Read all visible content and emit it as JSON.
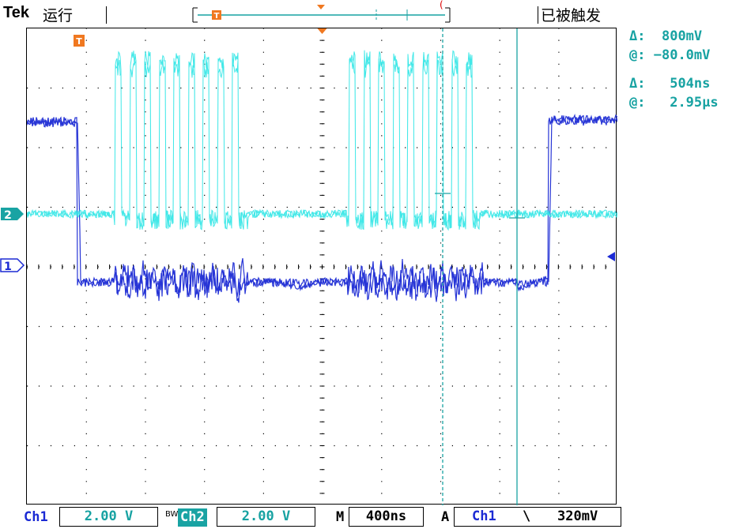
{
  "topbar": {
    "brand": "Tek",
    "run_state": "运行",
    "trigger_state": "已被触发",
    "trigger_position_marker": "T"
  },
  "markers": {
    "trigger_icon": "T",
    "ch1_marker": "1",
    "ch2_marker": "2"
  },
  "readouts": {
    "voltage_delta_label": "Δ:",
    "voltage_delta_value": "800mV",
    "voltage_at_label": "@:",
    "voltage_at_value": "−80.0mV",
    "time_delta_label": "Δ:",
    "time_delta_value": "504ns",
    "time_at_label": "@:",
    "time_at_value": "2.95μs"
  },
  "bottombar": {
    "ch1_label": "Ch1",
    "ch1_scale": "2.00 V",
    "bw_label": "BW",
    "ch2_label": "Ch2",
    "ch2_scale": "2.00 V",
    "timebase_label": "M",
    "timebase_value": "400ns",
    "trigger_label": "A",
    "trigger_source": "Ch1",
    "trigger_slope": "\\",
    "trigger_level": "320mV"
  },
  "colors": {
    "ch1": "#1b2ad4",
    "ch2": "#2ee6e6",
    "cursor": "#19a3a3",
    "trigger_marker": "#f07820"
  }
}
